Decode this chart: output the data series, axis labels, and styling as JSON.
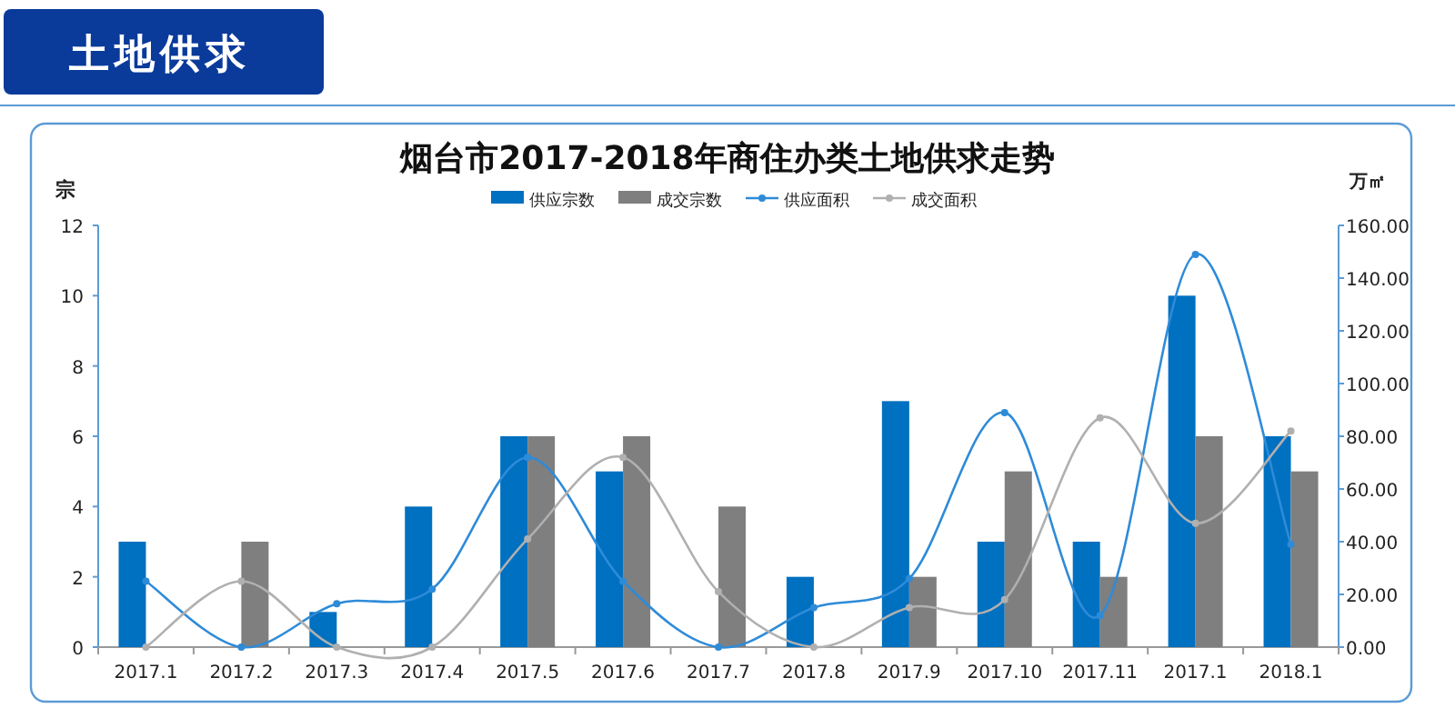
{
  "chart_data": {
    "type": "bar",
    "title": "烟台市2017-2018年商住办类土地供求走势",
    "ylabel": "宗",
    "y2label": "万㎡",
    "annotations": [
      "土地供求"
    ],
    "categories": [
      "2017.1",
      "2017.2",
      "2017.3",
      "2017.4",
      "2017.5",
      "2017.6",
      "2017.7",
      "2017.8",
      "2017.9",
      "2017.10",
      "2017.11",
      "2017.1",
      "2018.1"
    ],
    "series": [
      {
        "name": "供应宗数",
        "color": "#0070c0",
        "values": [
          3,
          0,
          1,
          4,
          6,
          5,
          0,
          2,
          7,
          3,
          3,
          10,
          6
        ]
      },
      {
        "name": "成交宗数",
        "color": "#7f7f7f",
        "values": [
          0,
          3,
          0,
          0,
          6,
          6,
          4,
          0,
          2,
          5,
          2,
          6,
          5
        ]
      },
      {
        "name": "供应面积",
        "type": "line",
        "axis": "y2",
        "color": "#2e8bd8",
        "values": [
          25,
          0,
          16.5,
          22,
          72,
          25,
          0,
          15,
          26,
          89,
          12,
          149,
          39
        ]
      },
      {
        "name": "成交面积",
        "type": "line",
        "axis": "y2",
        "color": "#b0b0b0",
        "values": [
          0,
          25,
          0,
          0,
          41,
          72,
          21,
          0,
          15,
          18,
          87,
          47,
          82
        ]
      }
    ],
    "ylim": [
      0,
      12
    ],
    "yticks": [
      0,
      2,
      4,
      6,
      8,
      10,
      12
    ],
    "y2lim": [
      0,
      160
    ],
    "y2ticks": [
      {
        "value": 0,
        "label": "0.00"
      },
      {
        "value": 20,
        "label": "20.00"
      },
      {
        "value": 40,
        "label": "40.00"
      },
      {
        "value": 60,
        "label": "60.00"
      },
      {
        "value": 80,
        "label": "80.00"
      },
      {
        "value": 100,
        "label": "100.00"
      },
      {
        "value": 120,
        "label": "120.00"
      },
      {
        "value": 140,
        "label": "140.00"
      },
      {
        "value": 160,
        "label": "160.00"
      }
    ],
    "legend": "top",
    "marker": "circle",
    "line_style": "solid",
    "grid": false
  }
}
